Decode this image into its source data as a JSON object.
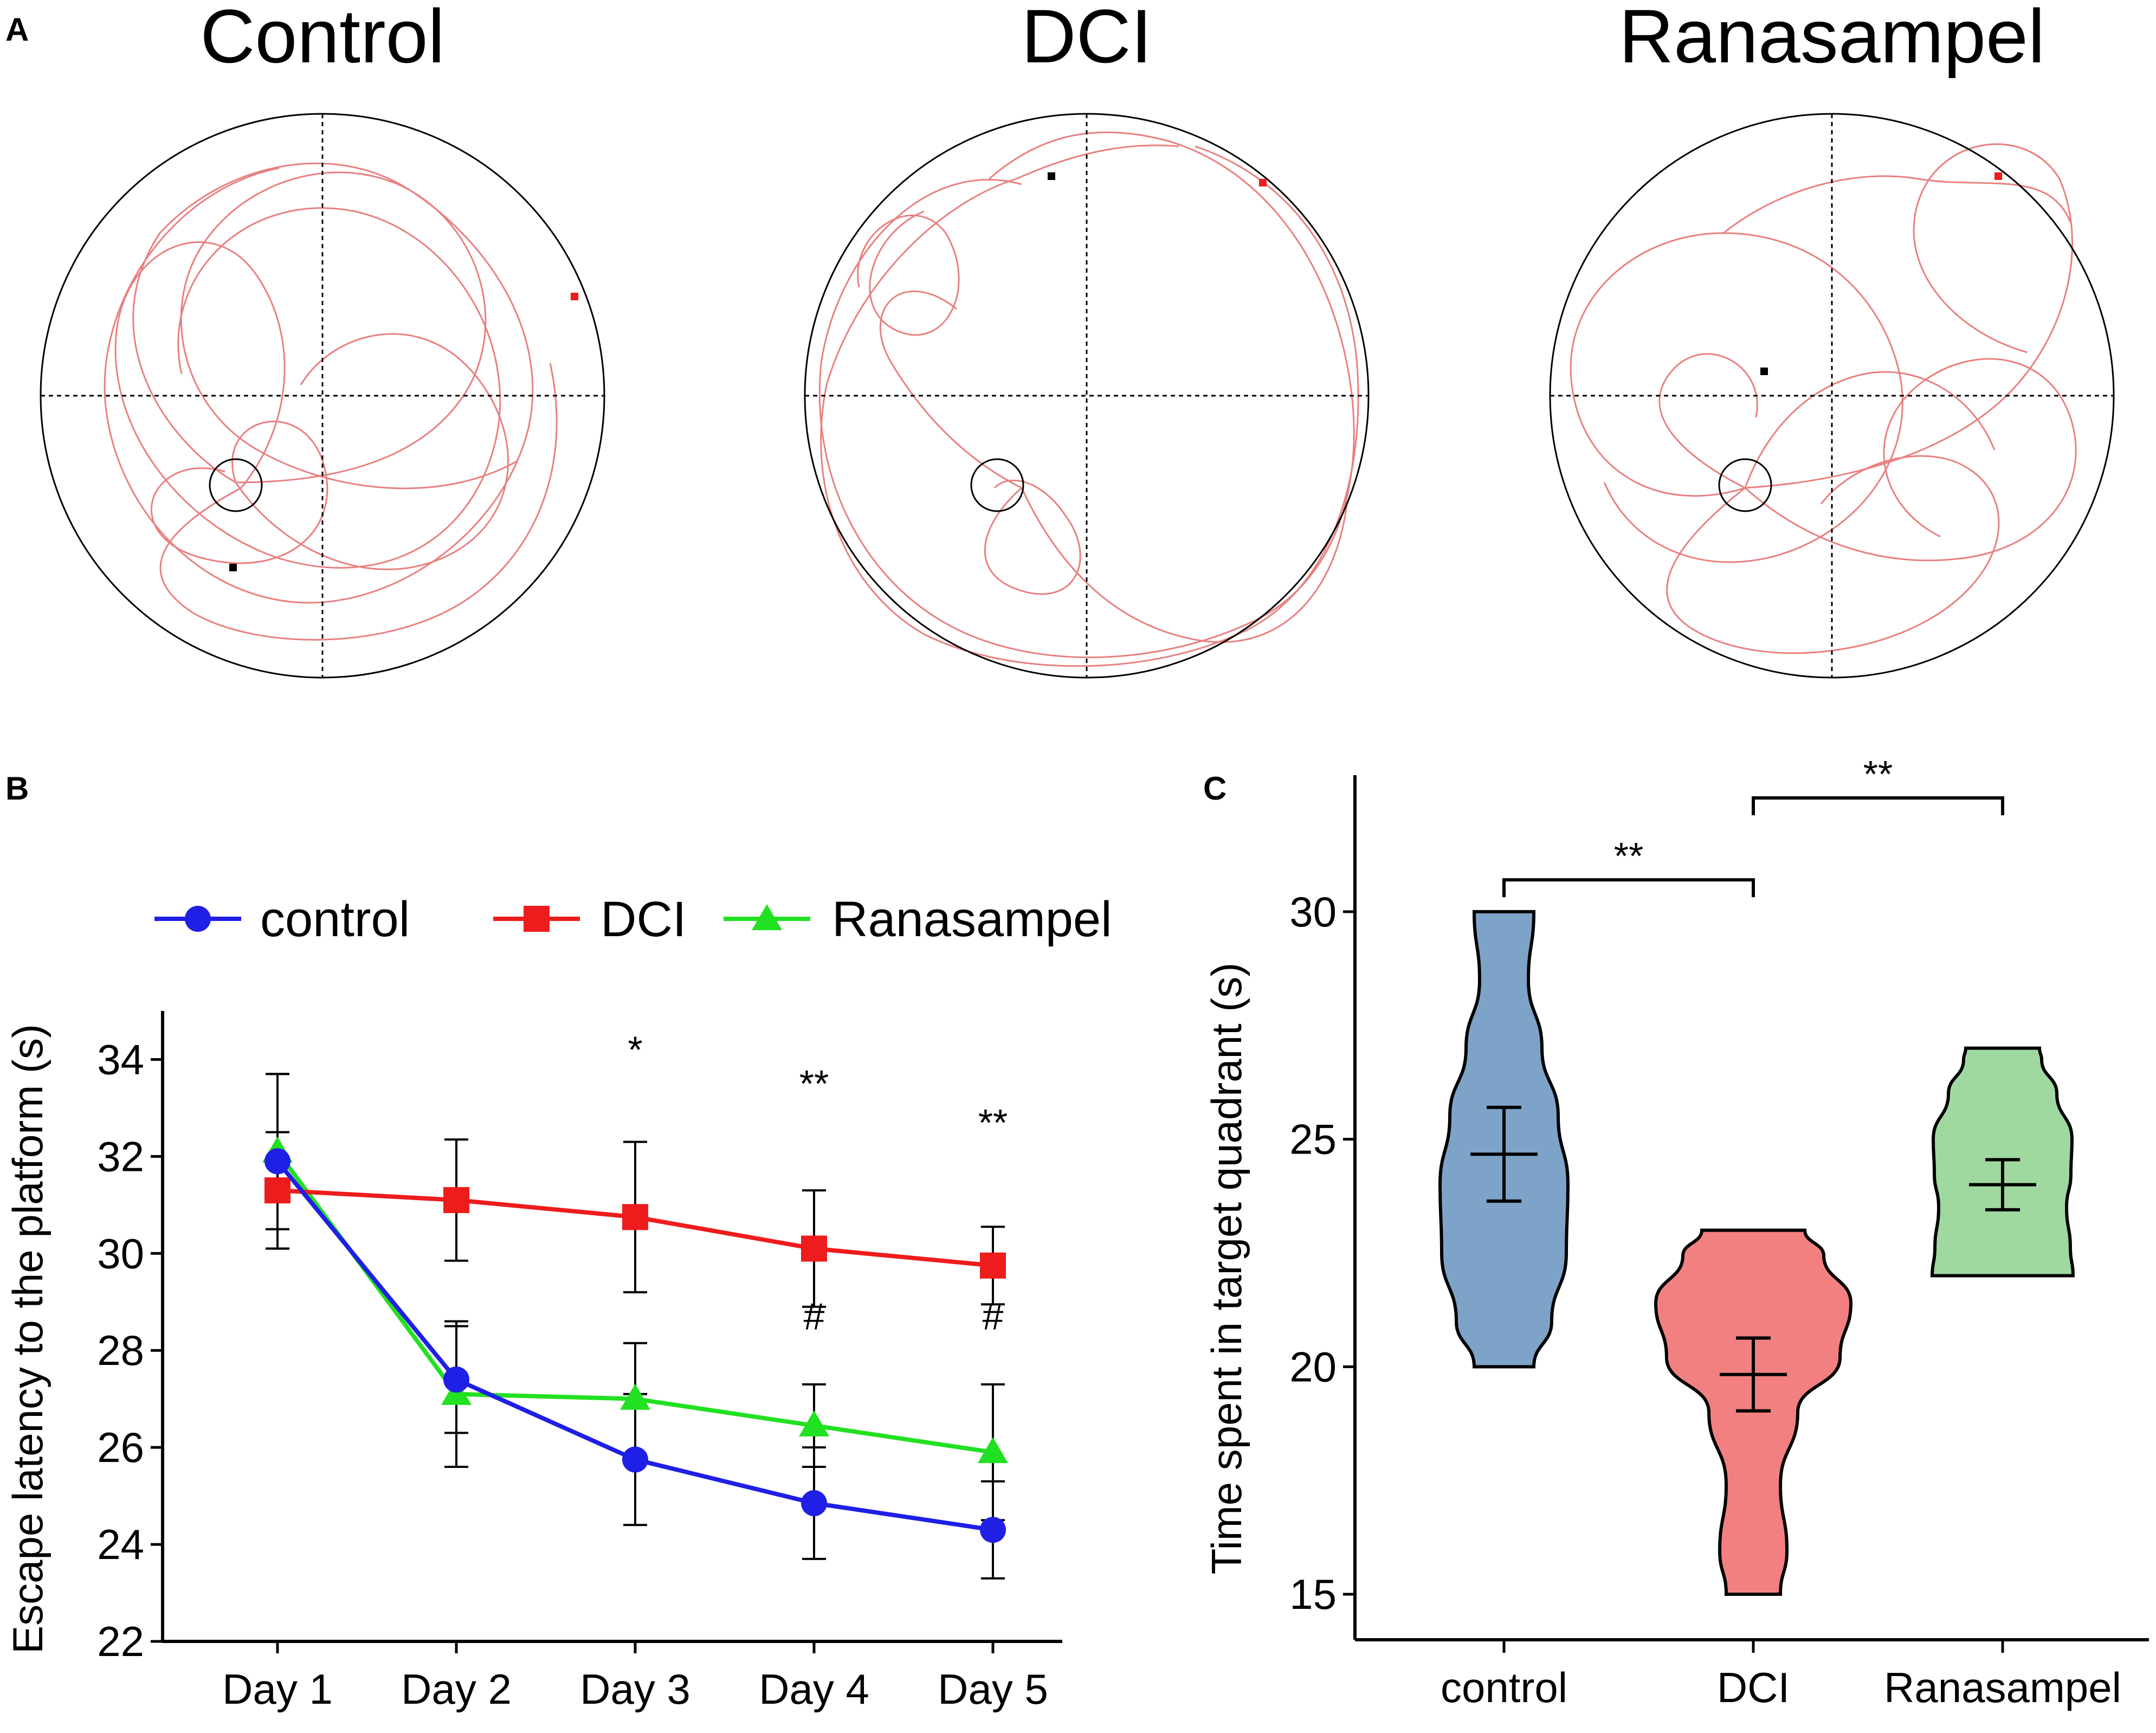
{
  "figure": {
    "panels": [
      "A",
      "B",
      "C"
    ],
    "colors": {
      "control": "#1f1fe6",
      "DCI": "#ee1c1c",
      "Ranasampel": "#22e022",
      "path": "#e88080",
      "black": "#000000"
    }
  },
  "panelA": {
    "letter": "A",
    "pools": [
      {
        "title": "Control"
      },
      {
        "title": "DCI"
      },
      {
        "title": "Ranasampel"
      }
    ]
  },
  "chart_data": [
    {
      "panel": "B",
      "type": "line",
      "title": "",
      "xlabel": "",
      "ylabel": "Escape latency to the platform (s)",
      "categories": [
        "Day 1",
        "Day 2",
        "Day 3",
        "Day 4",
        "Day 5"
      ],
      "ylim": [
        22,
        35
      ],
      "yticks": [
        22,
        24,
        26,
        28,
        30,
        32,
        34
      ],
      "legend_position": "top",
      "series": [
        {
          "name": "control",
          "marker": "circle",
          "color": "#1f1fe6",
          "values": [
            31.9,
            27.4,
            25.75,
            24.85,
            24.3
          ],
          "err": [
            1.8,
            1.1,
            1.35,
            1.15,
            1.0
          ]
        },
        {
          "name": "DCI",
          "marker": "square",
          "color": "#ee1c1c",
          "values": [
            31.3,
            31.1,
            30.75,
            30.1,
            29.75
          ],
          "err": [
            1.2,
            1.25,
            1.55,
            1.2,
            0.8
          ]
        },
        {
          "name": "Ranasampel",
          "marker": "triangle",
          "color": "#22e022",
          "values": [
            32.1,
            27.1,
            27.0,
            26.45,
            25.9
          ],
          "err": [
            1.6,
            1.5,
            1.15,
            0.85,
            1.4
          ]
        }
      ],
      "annotations": [
        {
          "category": "Day 3",
          "text": "*",
          "y": 34.2
        },
        {
          "category": "Day 4",
          "text": "**",
          "y": 33.5
        },
        {
          "category": "Day 5",
          "text": "**",
          "y": 32.7
        },
        {
          "category": "Day 4",
          "text": "#",
          "y": 28.7
        },
        {
          "category": "Day 5",
          "text": "#",
          "y": 28.7
        }
      ]
    },
    {
      "panel": "C",
      "type": "violin",
      "title": "",
      "xlabel": "",
      "ylabel": "Time spent in target quadrant (s)",
      "categories": [
        "control",
        "DCI",
        "Ranasampel"
      ],
      "ylim": [
        14,
        33
      ],
      "yticks": [
        15,
        20,
        25,
        30
      ],
      "groups": [
        {
          "name": "control",
          "color": "#7ea3c8",
          "min": 20,
          "max": 30,
          "mean": 24.67,
          "sem": 1.03
        },
        {
          "name": "DCI",
          "color": "#f28080",
          "min": 15,
          "max": 23,
          "mean": 19.83,
          "sem": 0.8
        },
        {
          "name": "Ranasampel",
          "color": "#a0d9a0",
          "min": 22,
          "max": 27,
          "mean": 24.0,
          "sem": 0.55
        }
      ],
      "significance": [
        {
          "from": "control",
          "to": "DCI",
          "text": "**",
          "y": 30.7
        },
        {
          "from": "DCI",
          "to": "Ranasampel",
          "text": "**",
          "y": 32.5
        }
      ]
    }
  ]
}
